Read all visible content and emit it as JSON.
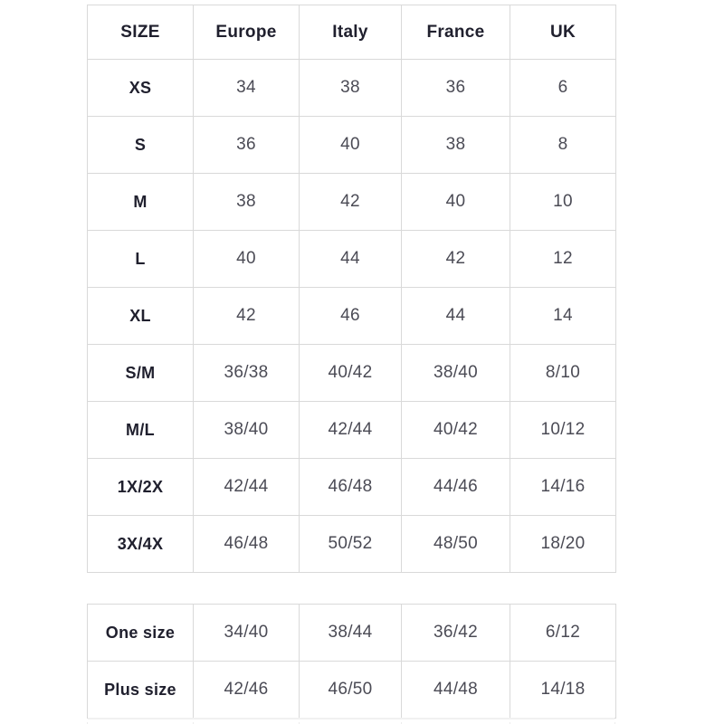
{
  "size_chart": {
    "headers": [
      "SIZE",
      "Europe",
      "Italy",
      "France",
      "UK"
    ],
    "main_rows": [
      {
        "size": "XS",
        "values": [
          "34",
          "38",
          "36",
          "6"
        ]
      },
      {
        "size": "S",
        "values": [
          "36",
          "40",
          "38",
          "8"
        ]
      },
      {
        "size": "M",
        "values": [
          "38",
          "42",
          "40",
          "10"
        ]
      },
      {
        "size": "L",
        "values": [
          "40",
          "44",
          "42",
          "12"
        ]
      },
      {
        "size": "XL",
        "values": [
          "42",
          "46",
          "44",
          "14"
        ]
      },
      {
        "size": "S/M",
        "values": [
          "36/38",
          "40/42",
          "38/40",
          "8/10"
        ]
      },
      {
        "size": "M/L",
        "values": [
          "38/40",
          "42/44",
          "40/42",
          "10/12"
        ]
      },
      {
        "size": "1X/2X",
        "values": [
          "42/44",
          "46/48",
          "44/46",
          "14/16"
        ]
      },
      {
        "size": "3X/4X",
        "values": [
          "46/48",
          "50/52",
          "48/50",
          "18/20"
        ]
      }
    ],
    "extra_rows": [
      {
        "size": "One size",
        "values": [
          "34/40",
          "38/44",
          "36/42",
          "6/12"
        ]
      },
      {
        "size": "Plus size",
        "values": [
          "42/46",
          "46/50",
          "44/48",
          "14/18"
        ]
      }
    ]
  },
  "colors": {
    "background": "#ffffff",
    "border": "#d9d9d9",
    "label_text": "#20202e",
    "value_text": "#4b4b55"
  }
}
